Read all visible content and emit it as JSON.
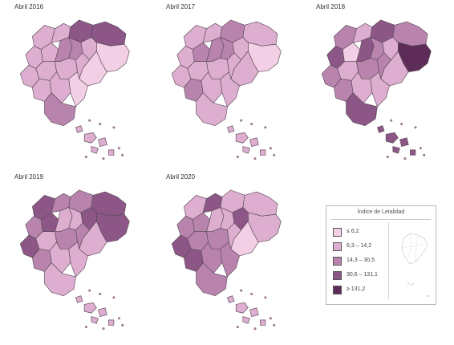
{
  "panels": [
    {
      "title": "Abril 2016"
    },
    {
      "title": "Abril 2017"
    },
    {
      "title": "Abril 2018"
    },
    {
      "title": "Abril 2019"
    },
    {
      "title": "Abril 2020"
    }
  ],
  "legend": {
    "title": "Índice de Letalidad",
    "classes": [
      {
        "label": "≤ 6,2",
        "color": "#f3cfe6"
      },
      {
        "label": "6,3 – 14,2",
        "color": "#ddaed0"
      },
      {
        "label": "14,3 – 30,5",
        "color": "#b884ad"
      },
      {
        "label": "30,6 – 131,1",
        "color": "#8c5786"
      },
      {
        "label": "≥ 131,2",
        "color": "#5d2c59"
      }
    ]
  },
  "colors": {
    "border": "#5a4a58",
    "class_1": "#f3cfe6",
    "class_2": "#ddaed0",
    "class_3": "#b884ad",
    "class_4": "#8c5786",
    "class_5": "#5d2c59"
  },
  "regions": {
    "2016": [
      "c2",
      "c2",
      "c4",
      "c4",
      "c1",
      "c2",
      "c2",
      "c3",
      "c3",
      "c2",
      "c1",
      "c2",
      "c2",
      "c2",
      "c2",
      "c2",
      "c2",
      "c1",
      "c3"
    ],
    "2017": [
      "c2",
      "c2",
      "c3",
      "c2",
      "c1",
      "c2",
      "c3",
      "c3",
      "c3",
      "c2",
      "c2",
      "c2",
      "c2",
      "c2",
      "c2",
      "c3",
      "c2",
      "c2",
      "c2"
    ],
    "2018": [
      "c3",
      "c2",
      "c4",
      "c3",
      "c5",
      "c4",
      "c1",
      "c4",
      "c3",
      "c2",
      "c2",
      "c3",
      "c2",
      "c3",
      "c3",
      "c3",
      "c2",
      "c2",
      "c4"
    ],
    "2019": [
      "c4",
      "c3",
      "c3",
      "c4",
      "c4",
      "c3",
      "c4",
      "c2",
      "c2",
      "c4",
      "c2",
      "c4",
      "c2",
      "c3",
      "c3",
      "c3",
      "c2",
      "c2",
      "c2"
    ],
    "2020": [
      "c2",
      "c4",
      "c2",
      "c2",
      "c2",
      "c3",
      "c3",
      "c2",
      "c2",
      "c4",
      "c1",
      "c4",
      "c3",
      "c3",
      "c2",
      "c4",
      "c3",
      "c3",
      "c3"
    ]
  }
}
